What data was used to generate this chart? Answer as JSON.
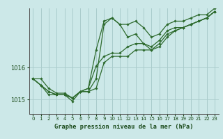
{
  "title": "Graphe pression niveau de la mer (hPa)",
  "bg_color": "#cce8e8",
  "grid_color": "#aacccc",
  "line_color": "#2d6a2d",
  "marker_color": "#2d6a2d",
  "xlim": [
    -0.5,
    23.5
  ],
  "ylim": [
    1014.55,
    1017.85
  ],
  "yticks": [
    1015,
    1016
  ],
  "xticks": [
    0,
    1,
    2,
    3,
    4,
    5,
    6,
    7,
    8,
    9,
    10,
    11,
    12,
    13,
    14,
    15,
    16,
    17,
    18,
    19,
    20,
    21,
    22,
    23
  ],
  "series": [
    [
      1015.65,
      1015.65,
      1015.35,
      1015.2,
      1015.2,
      1015.05,
      1015.25,
      1015.25,
      1015.65,
      1017.35,
      1017.55,
      1017.35,
      1016.95,
      1017.05,
      1016.75,
      1016.55,
      1016.65,
      1016.95,
      1017.15,
      1017.25,
      1017.35,
      1017.45,
      1017.55,
      1017.75
    ],
    [
      1015.65,
      1015.45,
      1015.15,
      1015.15,
      1015.15,
      1014.95,
      1015.25,
      1015.25,
      1015.35,
      1016.15,
      1016.35,
      1016.35,
      1016.35,
      1016.55,
      1016.55,
      1016.55,
      1016.75,
      1017.05,
      1017.15,
      1017.25,
      1017.35,
      1017.45,
      1017.55,
      1017.75
    ],
    [
      1015.65,
      1015.45,
      1015.25,
      1015.15,
      1015.15,
      1015.05,
      1015.25,
      1015.35,
      1016.05,
      1016.35,
      1016.45,
      1016.45,
      1016.65,
      1016.75,
      1016.75,
      1016.65,
      1016.85,
      1017.15,
      1017.25,
      1017.25,
      1017.35,
      1017.45,
      1017.55,
      1017.75
    ],
    [
      1015.65,
      1015.45,
      1015.25,
      1015.15,
      1015.15,
      1015.05,
      1015.25,
      1015.35,
      1016.55,
      1017.45,
      1017.55,
      1017.35,
      1017.35,
      1017.45,
      1017.25,
      1016.95,
      1017.05,
      1017.35,
      1017.45,
      1017.45,
      1017.55,
      1017.65,
      1017.65,
      1017.85
    ]
  ]
}
